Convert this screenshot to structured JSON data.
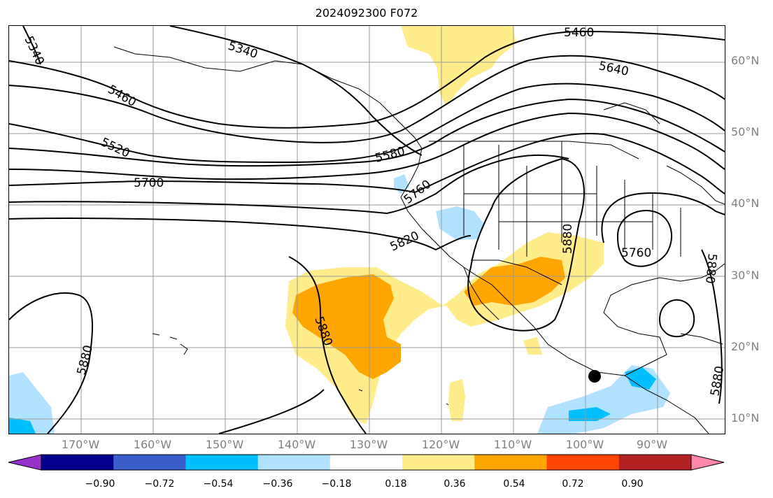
{
  "title": "2024092300 F072",
  "lat_labels": [
    "60°N",
    "50°N",
    "40°N",
    "30°N",
    "20°N",
    "10°N"
  ],
  "lon_labels": [
    "170°W",
    "160°W",
    "150°W",
    "140°W",
    "130°W",
    "120°W",
    "110°W",
    "100°W",
    "90°W"
  ],
  "contour_labels": [
    "5340",
    "5340",
    "5460",
    "5460",
    "5520",
    "5580",
    "5640",
    "5700",
    "5760",
    "5760",
    "5820",
    "5880",
    "5880",
    "5880",
    "5880",
    "5880"
  ],
  "colorbar": {
    "ticks": [
      "−0.90",
      "−0.72",
      "−0.54",
      "−0.36",
      "−0.18",
      "0.18",
      "0.36",
      "0.54",
      "0.72",
      "0.90"
    ],
    "colors": [
      "#9932cc",
      "#00008b",
      "#3a5fcd",
      "#00bfff",
      "#b0e2ff",
      "#ffffff",
      "#ffec8b",
      "#ffa500",
      "#ff4500",
      "#b22222",
      "#ff88aa"
    ]
  },
  "contour_color": "#000000",
  "marker": "black-dot"
}
